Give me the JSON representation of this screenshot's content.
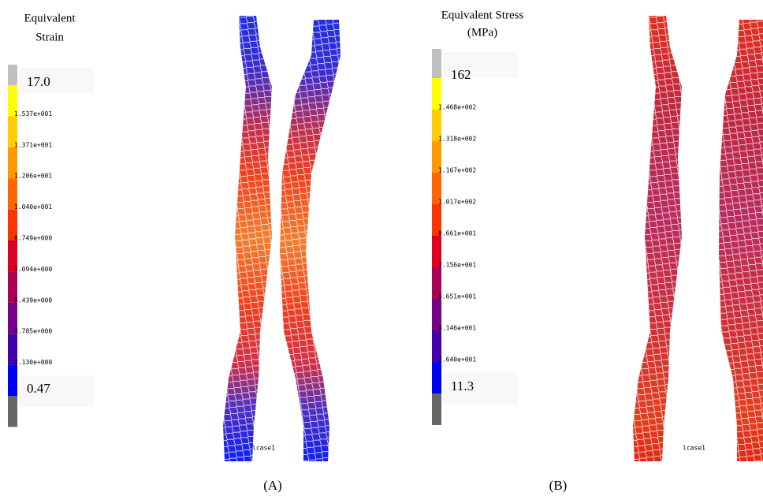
{
  "panel_a": {
    "legend_title": [
      "Equivalent",
      "Strain"
    ],
    "max_label": "17.0",
    "tick_labels": [
      "1.537e+001",
      "1.371e+001",
      "1.206e+001",
      "1.040e+001",
      "8.749e+000",
      "7.094e+000",
      "5.439e+000",
      "3.785e+000",
      "2.130e+000"
    ],
    "min_label": "0.47",
    "case_label": "lcase1",
    "caption": "(A)"
  },
  "panel_b": {
    "legend_title": [
      "Equivalent Stress",
      "(MPa)"
    ],
    "max_label": "162",
    "tick_labels": [
      "1.468e+002",
      "1.318e+002",
      "1.167e+002",
      "1.017e+002",
      "8.661e+001",
      "7.156e+001",
      "5.651e+001",
      "4.146e+001",
      "2.640e+001"
    ],
    "min_label": "11.3",
    "case_label": "lcase1",
    "caption": "(B)"
  }
}
